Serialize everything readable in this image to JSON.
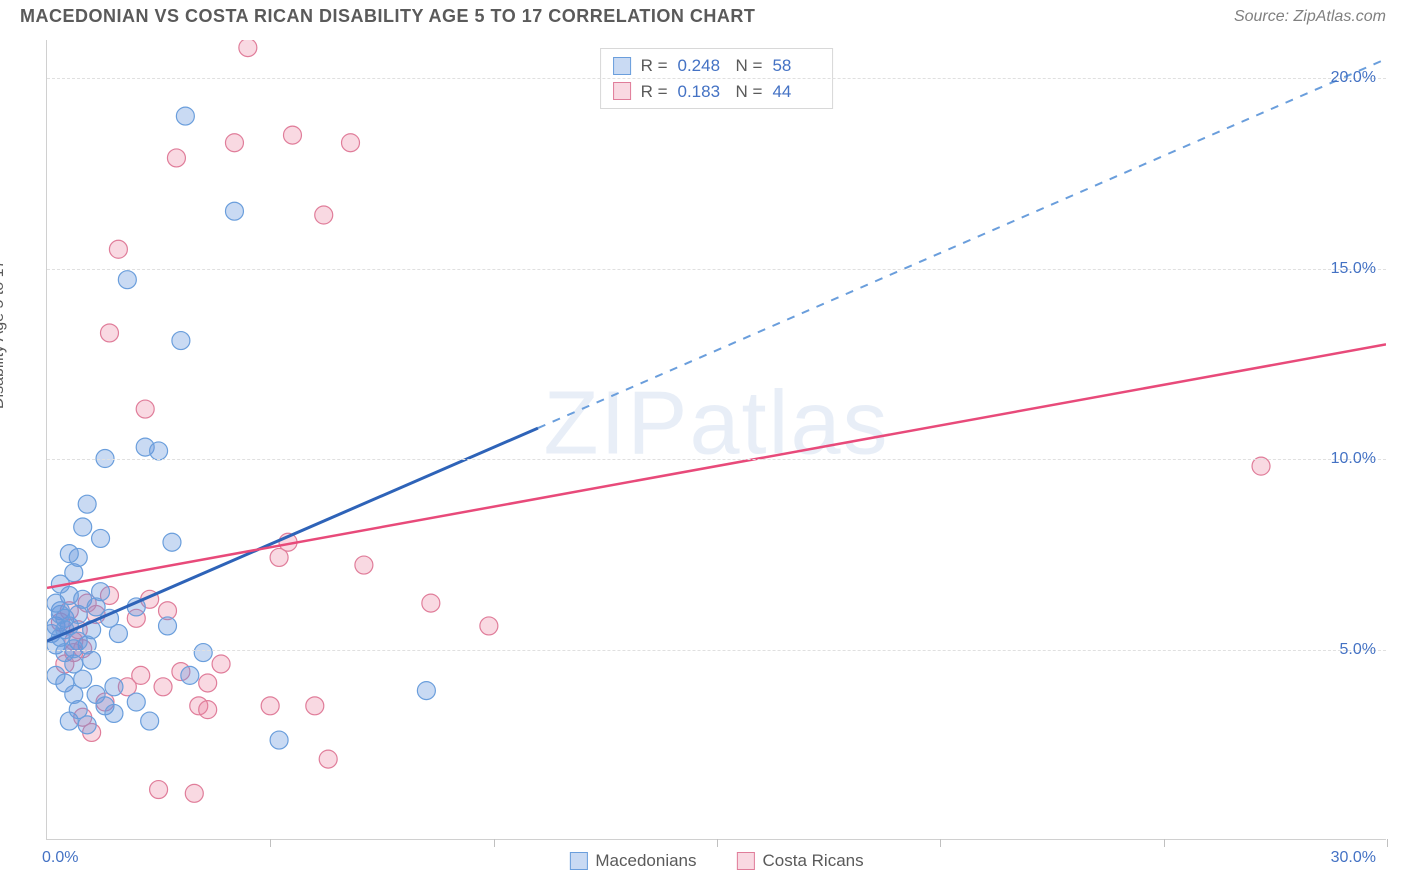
{
  "header": {
    "title": "MACEDONIAN VS COSTA RICAN DISABILITY AGE 5 TO 17 CORRELATION CHART",
    "source": "Source: ZipAtlas.com"
  },
  "ylabel": "Disability Age 5 to 17",
  "watermark_a": "ZIP",
  "watermark_b": "atlas",
  "chart": {
    "type": "scatter",
    "xlim": [
      0,
      30
    ],
    "ylim": [
      0,
      21
    ],
    "xtick_labels": {
      "0": "0.0%",
      "30": "30.0%"
    },
    "xticks_minor": [
      5,
      10,
      15,
      20,
      25,
      30
    ],
    "yticks": [
      5,
      10,
      15,
      20
    ],
    "ytick_labels": {
      "5": "5.0%",
      "10": "10.0%",
      "15": "15.0%",
      "20": "20.0%"
    },
    "grid_color": "#e0e0e0",
    "axis_color": "#d0d0d0",
    "bgcolor": "#ffffff"
  },
  "series": {
    "macedonians": {
      "label": "Macedonians",
      "color_fill": "rgba(100,150,220,0.35)",
      "color_stroke": "#6a9edc",
      "r_label": "R =",
      "r_value": "0.248",
      "n_label": "N =",
      "n_value": "58",
      "trend_color": "#2e63b8",
      "trend_dash_color": "#6a9edc",
      "points": [
        [
          0.1,
          5.4
        ],
        [
          0.2,
          5.6
        ],
        [
          0.3,
          6.0
        ],
        [
          0.4,
          5.8
        ],
        [
          0.5,
          6.4
        ],
        [
          0.2,
          5.1
        ],
        [
          0.3,
          5.3
        ],
        [
          0.5,
          5.6
        ],
        [
          0.7,
          5.9
        ],
        [
          0.3,
          6.7
        ],
        [
          0.6,
          7.0
        ],
        [
          0.8,
          6.3
        ],
        [
          1.0,
          5.5
        ],
        [
          0.4,
          4.9
        ],
        [
          0.6,
          4.6
        ],
        [
          0.8,
          4.2
        ],
        [
          1.1,
          3.8
        ],
        [
          1.3,
          3.5
        ],
        [
          1.5,
          4.0
        ],
        [
          0.9,
          8.8
        ],
        [
          1.2,
          7.9
        ],
        [
          0.7,
          7.4
        ],
        [
          2.2,
          10.3
        ],
        [
          2.5,
          10.2
        ],
        [
          2.8,
          7.8
        ],
        [
          3.2,
          4.3
        ],
        [
          3.5,
          4.9
        ],
        [
          2.7,
          5.6
        ],
        [
          5.2,
          2.6
        ],
        [
          1.8,
          14.7
        ],
        [
          3.1,
          19.0
        ],
        [
          3.0,
          13.1
        ],
        [
          4.2,
          16.5
        ],
        [
          8.5,
          3.9
        ],
        [
          1.5,
          3.3
        ],
        [
          2.0,
          3.6
        ],
        [
          2.3,
          3.1
        ],
        [
          0.5,
          3.1
        ],
        [
          0.7,
          3.4
        ],
        [
          0.9,
          3.0
        ],
        [
          0.2,
          4.3
        ],
        [
          0.4,
          4.1
        ],
        [
          0.6,
          3.8
        ],
        [
          1.2,
          6.5
        ],
        [
          1.4,
          5.8
        ],
        [
          1.0,
          4.7
        ],
        [
          1.3,
          10.0
        ],
        [
          0.8,
          8.2
        ],
        [
          0.5,
          7.5
        ],
        [
          0.9,
          5.1
        ],
        [
          1.1,
          6.1
        ],
        [
          0.3,
          5.9
        ],
        [
          0.7,
          5.2
        ],
        [
          0.2,
          6.2
        ],
        [
          0.4,
          5.5
        ],
        [
          0.6,
          5.0
        ],
        [
          1.6,
          5.4
        ],
        [
          2.0,
          6.1
        ]
      ],
      "trend": {
        "x1": 0,
        "y1": 5.2,
        "x2": 11,
        "y2": 10.8,
        "dash_x2": 30,
        "dash_y2": 20.5
      }
    },
    "costaricans": {
      "label": "Costa Ricans",
      "color_fill": "rgba(235,130,160,0.30)",
      "color_stroke": "#e07d9a",
      "r_label": "R =",
      "r_value": "0.183",
      "n_label": "N =",
      "n_value": "44",
      "trend_color": "#e84a7a",
      "points": [
        [
          0.3,
          5.7
        ],
        [
          0.5,
          6.0
        ],
        [
          0.7,
          5.5
        ],
        [
          0.9,
          6.2
        ],
        [
          1.1,
          5.9
        ],
        [
          1.4,
          6.4
        ],
        [
          0.6,
          5.2
        ],
        [
          0.8,
          5.0
        ],
        [
          2.0,
          5.8
        ],
        [
          2.3,
          6.3
        ],
        [
          2.7,
          6.0
        ],
        [
          5.4,
          7.8
        ],
        [
          5.2,
          7.4
        ],
        [
          1.6,
          15.5
        ],
        [
          2.2,
          11.3
        ],
        [
          2.9,
          17.9
        ],
        [
          4.5,
          20.8
        ],
        [
          4.2,
          18.3
        ],
        [
          5.5,
          18.5
        ],
        [
          6.8,
          18.3
        ],
        [
          6.2,
          16.4
        ],
        [
          6.3,
          2.1
        ],
        [
          3.3,
          1.2
        ],
        [
          2.5,
          1.3
        ],
        [
          3.6,
          4.1
        ],
        [
          3.4,
          3.5
        ],
        [
          3.6,
          3.4
        ],
        [
          3.9,
          4.6
        ],
        [
          5.0,
          3.5
        ],
        [
          6.0,
          3.5
        ],
        [
          8.6,
          6.2
        ],
        [
          9.9,
          5.6
        ],
        [
          7.1,
          7.2
        ],
        [
          27.2,
          9.8
        ],
        [
          1.8,
          4.0
        ],
        [
          2.1,
          4.3
        ],
        [
          2.6,
          4.0
        ],
        [
          3.0,
          4.4
        ],
        [
          1.3,
          3.6
        ],
        [
          1.0,
          2.8
        ],
        [
          0.8,
          3.2
        ],
        [
          0.4,
          4.6
        ],
        [
          0.6,
          4.9
        ],
        [
          1.4,
          13.3
        ]
      ],
      "trend": {
        "x1": 0,
        "y1": 6.6,
        "x2": 30,
        "y2": 13.0
      }
    }
  },
  "legend_top": {
    "rows": [
      "macedonians",
      "costaricans"
    ]
  },
  "legend_bottom": [
    "macedonians",
    "costaricans"
  ]
}
